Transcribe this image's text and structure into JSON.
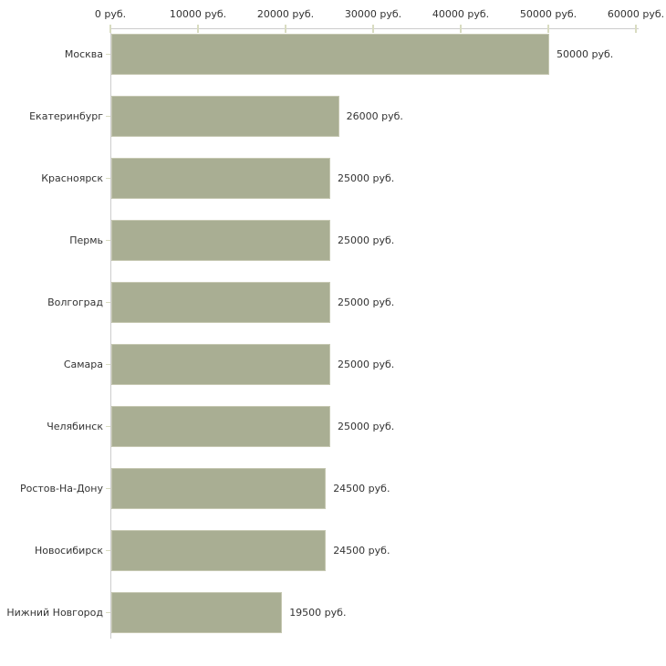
{
  "chart_data": {
    "type": "bar",
    "orientation": "horizontal",
    "title": "",
    "xlabel": "",
    "ylabel": "",
    "unit": "руб.",
    "categories": [
      "Москва",
      "Екатеринбург",
      "Красноярск",
      "Пермь",
      "Волгоград",
      "Самара",
      "Челябинск",
      "Ростов-На-Дону",
      "Новосибирск",
      "Нижний Новгород"
    ],
    "values": [
      50000,
      26000,
      25000,
      25000,
      25000,
      25000,
      25000,
      24500,
      24500,
      19500
    ],
    "value_labels": [
      "50000 руб.",
      "26000 руб.",
      "25000 руб.",
      "25000 руб.",
      "25000 руб.",
      "25000 руб.",
      "25000 руб.",
      "24500 руб.",
      "24500 руб.",
      "19500 руб."
    ],
    "x_ticks": [
      0,
      10000,
      20000,
      30000,
      40000,
      50000,
      60000
    ],
    "x_tick_labels": [
      "0 руб.",
      "10000 руб.",
      "20000 руб.",
      "30000 руб.",
      "40000 руб.",
      "50000 руб.",
      "60000 руб."
    ],
    "xlim": [
      0,
      60000
    ],
    "grid": false,
    "legend": false,
    "bar_color": "#A9AE93",
    "bar_border_color": "#C6C8B2",
    "axis_line_color": "#CCCCCC",
    "tick_color": "#D9DCC1",
    "text_color": "#333333"
  }
}
